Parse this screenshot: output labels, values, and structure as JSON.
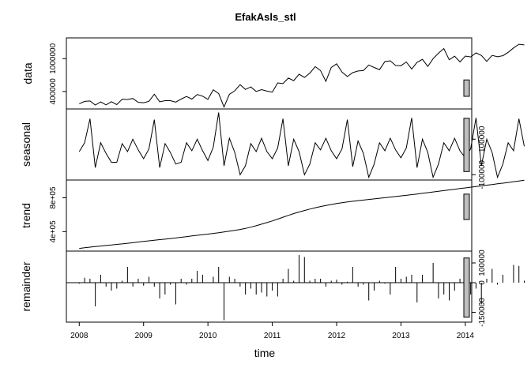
{
  "chart_data": {
    "type": "line",
    "title": "EfakAsls_stl",
    "xlabel": "time",
    "x_ticks": [
      "2008",
      "2009",
      "2010",
      "2011",
      "2012",
      "2013",
      "2014"
    ],
    "x_range": [
      2007.8,
      2014.1
    ],
    "time": {
      "start": 2008.0,
      "frequency": 12
    },
    "panels": [
      {
        "name": "data",
        "ylabel": "data",
        "plot": "line",
        "ylim": [
          80000,
          1380000
        ],
        "yticks": [
          400000,
          1000000
        ],
        "ytick_labels": [
          "400000",
          "1000000"
        ],
        "ytick_side": "left",
        "range_bar_height": 300000,
        "values": [
          176000,
          218000,
          226000,
          152000,
          208000,
          155000,
          213000,
          160000,
          259000,
          254000,
          272000,
          201000,
          194000,
          220000,
          350000,
          210000,
          232000,
          232000,
          206000,
          260000,
          308000,
          260000,
          344000,
          314000,
          256000,
          431000,
          361000,
          118000,
          347000,
          412000,
          525000,
          437000,
          483000,
          401000,
          434000,
          407000,
          387000,
          557000,
          543000,
          645000,
          599000,
          716000,
          657000,
          736000,
          854000,
          784000,
          585000,
          839000,
          906000,
          755000,
          673000,
          745000,
          775000,
          782000,
          884000,
          839000,
          799000,
          946000,
          961000,
          876000,
          871000,
          940000,
          811000,
          933000,
          987000,
          858000,
          1000000,
          1100000,
          1185000,
          980000,
          1045000,
          941000,
          1048000,
          1032000,
          1106000,
          1059000,
          949000,
          1060000,
          1035000,
          1053000,
          1115000,
          1196000,
          1263000,
          1252000
        ]
      },
      {
        "name": "seasonal",
        "ylabel": "seasonal",
        "plot": "line",
        "ylim": [
          -130000,
          270000
        ],
        "yticks": [
          -100000,
          100000
        ],
        "ytick_labels": [
          "-100000",
          "100000"
        ],
        "ytick_side": "right",
        "range_bar_height": 300000,
        "values": [
          30000,
          80000,
          215000,
          -60000,
          80000,
          20000,
          -30000,
          -30000,
          75000,
          30000,
          100000,
          40000,
          -10000,
          45000,
          210000,
          -60000,
          75000,
          25000,
          -40000,
          -30000,
          80000,
          35000,
          100000,
          35000,
          -20000,
          55000,
          250000,
          -50000,
          105000,
          25000,
          -100000,
          -50000,
          75000,
          30000,
          105000,
          30000,
          -10000,
          50000,
          215000,
          -50000,
          100000,
          30000,
          -100000,
          -40000,
          80000,
          40000,
          105000,
          35000,
          -10000,
          45000,
          210000,
          -55000,
          90000,
          20000,
          -115000,
          -40000,
          80000,
          35000,
          105000,
          40000,
          -5000,
          50000,
          220000,
          -60000,
          100000,
          25000,
          -115000,
          -40000,
          80000,
          35000,
          105000,
          35000,
          -5000,
          45000,
          220000,
          -50000,
          100000,
          25000,
          -115000,
          -40000,
          80000,
          35000,
          215000,
          60000
        ]
      },
      {
        "name": "trend",
        "ylabel": "trend",
        "plot": "line",
        "ylim": [
          170000,
          1010000
        ],
        "yticks": [
          400000,
          800000
        ],
        "ytick_labels": [
          "4e+05",
          "8e+05"
        ],
        "ytick_side": "left",
        "range_bar_height": 300000,
        "values": [
          202000,
          210000,
          217000,
          224000,
          230000,
          236000,
          242000,
          249000,
          255000,
          262000,
          269000,
          277000,
          284000,
          291000,
          298000,
          305000,
          311000,
          318000,
          325000,
          333000,
          341000,
          349000,
          357000,
          364000,
          371000,
          379000,
          387000,
          396000,
          405000,
          415000,
          426000,
          438000,
          453000,
          470000,
          488000,
          507000,
          527000,
          548000,
          570000,
          592000,
          613000,
          632000,
          650000,
          667000,
          682000,
          696000,
          709000,
          721000,
          732000,
          742000,
          751000,
          759000,
          766000,
          773000,
          780000,
          787000,
          794000,
          801000,
          808000,
          815000,
          822000,
          829000,
          837000,
          845000,
          853000,
          861000,
          869000,
          877000,
          885000,
          893000,
          901000,
          909000,
          917000,
          925000,
          933000,
          941000,
          949000,
          957000,
          965000,
          973000,
          981000,
          990000,
          999000,
          1008000
        ]
      },
      {
        "name": "remainder",
        "ylabel": "remainder",
        "plot": "spikes",
        "ylim": [
          -200000,
          160000
        ],
        "yticks": [
          -150000,
          0,
          100000
        ],
        "ytick_labels": [
          "-150000",
          "0",
          "100000"
        ],
        "ytick_side": "right",
        "range_bar_height": 300000,
        "values": [
          -5000,
          25000,
          20000,
          -120000,
          40000,
          -20000,
          -40000,
          -30000,
          10000,
          80000,
          -20000,
          20000,
          -15000,
          30000,
          -20000,
          -80000,
          -60000,
          -10000,
          -110000,
          20000,
          -10000,
          20000,
          60000,
          40000,
          0,
          30000,
          80000,
          -190000,
          30000,
          20000,
          -20000,
          -60000,
          -30000,
          -60000,
          -50000,
          -70000,
          -40000,
          -70000,
          20000,
          70000,
          10000,
          140000,
          130000,
          10000,
          20000,
          20000,
          -20000,
          10000,
          15000,
          -10000,
          5000,
          80000,
          -20000,
          -10000,
          -90000,
          -40000,
          10000,
          -5000,
          -60000,
          80000,
          20000,
          30000,
          40000,
          -100000,
          40000,
          0,
          100000,
          -80000,
          -60000,
          -90000,
          -40000,
          20000,
          70000,
          -60000,
          -30000,
          -110000,
          20000,
          70000,
          -10000,
          40000,
          0,
          90000,
          85000,
          10000
        ]
      }
    ]
  }
}
